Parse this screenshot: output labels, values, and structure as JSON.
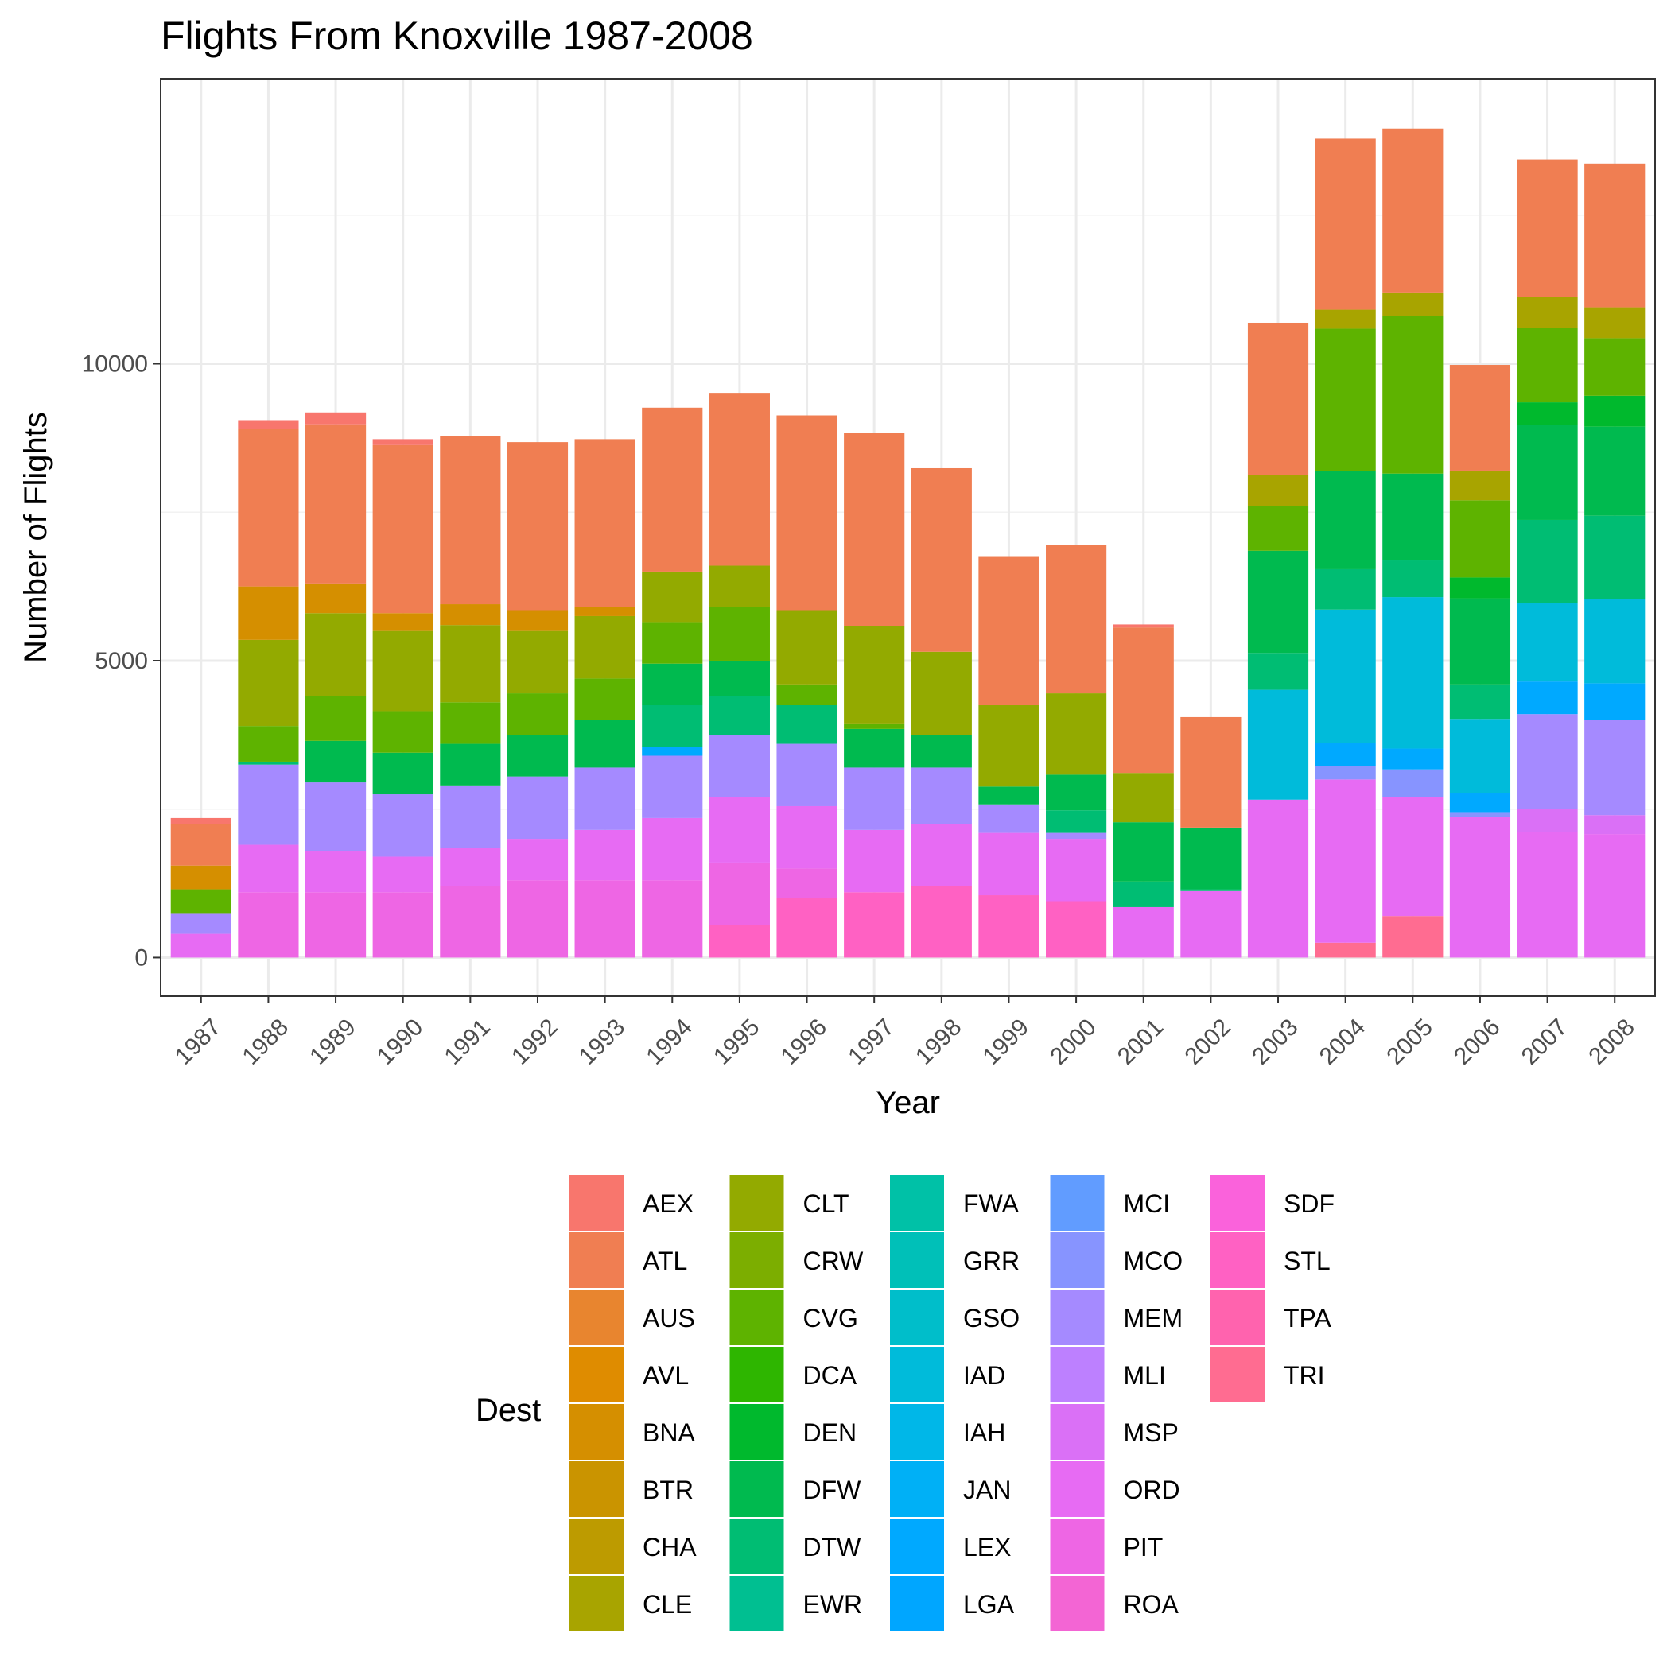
{
  "chart_data": {
    "type": "bar",
    "stacked": true,
    "title": "Flights From Knoxville 1987-2008",
    "xlabel": "Year",
    "ylabel": "Number of Flights",
    "ylim": [
      -650,
      14800
    ],
    "yticks": [
      0,
      5000,
      10000
    ],
    "ytick_labels": [
      "0",
      "5000",
      "10000"
    ],
    "grid": true,
    "legend_position": "bottom",
    "legend_title": "Dest",
    "categories": [
      "1987",
      "1988",
      "1989",
      "1990",
      "1991",
      "1992",
      "1993",
      "1994",
      "1995",
      "1996",
      "1997",
      "1998",
      "1999",
      "2000",
      "2001",
      "2002",
      "2003",
      "2004",
      "2005",
      "2006",
      "2007",
      "2008"
    ],
    "series": [
      {
        "name": "AEX",
        "color": "#F8766D",
        "values": [
          100,
          150,
          200,
          100,
          0,
          0,
          0,
          0,
          0,
          0,
          0,
          0,
          0,
          0,
          50,
          0,
          0,
          0,
          0,
          0,
          0,
          0
        ]
      },
      {
        "name": "ATL",
        "color": "#F07E52",
        "values": [
          700,
          2650,
          2680,
          2830,
          2830,
          2830,
          2830,
          2760,
          2910,
          3280,
          3260,
          3090,
          2510,
          2500,
          2450,
          1860,
          2560,
          2880,
          2760,
          1780,
          2320,
          2420
        ]
      },
      {
        "name": "AUS",
        "color": "#E8852F",
        "values": [
          0,
          0,
          0,
          0,
          0,
          0,
          0,
          0,
          0,
          0,
          0,
          0,
          0,
          0,
          0,
          0,
          0,
          0,
          0,
          0,
          0,
          0
        ]
      },
      {
        "name": "AVL",
        "color": "#DF8C00",
        "values": [
          0,
          0,
          0,
          0,
          0,
          0,
          0,
          0,
          0,
          0,
          0,
          0,
          0,
          0,
          0,
          0,
          0,
          0,
          0,
          0,
          0,
          0
        ]
      },
      {
        "name": "BNA",
        "color": "#D58F00",
        "values": [
          400,
          900,
          500,
          300,
          350,
          350,
          150,
          0,
          0,
          0,
          0,
          0,
          0,
          0,
          0,
          0,
          0,
          0,
          0,
          0,
          0,
          0
        ]
      },
      {
        "name": "BTR",
        "color": "#CA9400",
        "values": [
          0,
          0,
          0,
          0,
          0,
          0,
          0,
          0,
          0,
          0,
          0,
          0,
          0,
          0,
          0,
          0,
          0,
          0,
          0,
          0,
          0,
          0
        ]
      },
      {
        "name": "CHA",
        "color": "#BD9B00",
        "values": [
          0,
          0,
          0,
          0,
          0,
          0,
          0,
          0,
          0,
          0,
          0,
          0,
          0,
          0,
          0,
          0,
          0,
          0,
          0,
          0,
          0,
          0
        ]
      },
      {
        "name": "CLE",
        "color": "#A8A400",
        "values": [
          0,
          0,
          0,
          0,
          0,
          0,
          0,
          0,
          0,
          0,
          0,
          0,
          0,
          0,
          0,
          0,
          530,
          320,
          400,
          500,
          520,
          520
        ]
      },
      {
        "name": "CLT",
        "color": "#93AA00",
        "values": [
          0,
          1450,
          1400,
          1350,
          1300,
          1050,
          1050,
          850,
          700,
          1250,
          1650,
          1400,
          1370,
          1370,
          830,
          0,
          0,
          0,
          0,
          0,
          0,
          0
        ]
      },
      {
        "name": "CRW",
        "color": "#7CAE00",
        "values": [
          0,
          0,
          0,
          0,
          0,
          0,
          0,
          0,
          0,
          0,
          0,
          0,
          0,
          0,
          0,
          0,
          0,
          0,
          0,
          0,
          0,
          0
        ]
      },
      {
        "name": "CVG",
        "color": "#5EB300",
        "values": [
          400,
          600,
          750,
          700,
          700,
          700,
          700,
          700,
          900,
          350,
          80,
          0,
          0,
          0,
          0,
          0,
          750,
          2400,
          2650,
          1300,
          1250,
          970
        ]
      },
      {
        "name": "DCA",
        "color": "#2EB600",
        "values": [
          0,
          0,
          0,
          0,
          0,
          0,
          0,
          0,
          0,
          0,
          0,
          0,
          0,
          0,
          0,
          0,
          0,
          0,
          0,
          0,
          0,
          0
        ]
      },
      {
        "name": "DEN",
        "color": "#00B92D",
        "values": [
          0,
          0,
          0,
          0,
          0,
          0,
          0,
          0,
          0,
          0,
          0,
          0,
          0,
          0,
          0,
          0,
          0,
          0,
          0,
          350,
          380,
          520
        ]
      },
      {
        "name": "DFW",
        "color": "#00BA4F",
        "values": [
          0,
          0,
          700,
          700,
          700,
          700,
          800,
          700,
          600,
          0,
          650,
          550,
          300,
          600,
          1000,
          1040,
          1720,
          1650,
          1450,
          1450,
          1600,
          1500
        ]
      },
      {
        "name": "DTW",
        "color": "#00BD73",
        "values": [
          0,
          50,
          0,
          0,
          0,
          0,
          0,
          700,
          650,
          650,
          0,
          0,
          0,
          380,
          430,
          30,
          620,
          680,
          630,
          580,
          1400,
          1400
        ]
      },
      {
        "name": "EWR",
        "color": "#00BF91",
        "values": [
          0,
          0,
          0,
          0,
          0,
          0,
          0,
          0,
          0,
          0,
          0,
          0,
          0,
          0,
          0,
          0,
          0,
          0,
          0,
          0,
          0,
          0
        ]
      },
      {
        "name": "FWA",
        "color": "#00C1A7",
        "values": [
          0,
          0,
          0,
          0,
          0,
          0,
          0,
          0,
          0,
          0,
          0,
          0,
          0,
          0,
          0,
          0,
          0,
          0,
          0,
          0,
          0,
          0
        ]
      },
      {
        "name": "GRR",
        "color": "#00C0B8",
        "values": [
          0,
          0,
          0,
          0,
          0,
          0,
          0,
          0,
          0,
          0,
          0,
          0,
          0,
          0,
          0,
          0,
          0,
          0,
          0,
          0,
          0,
          0
        ]
      },
      {
        "name": "GSO",
        "color": "#00BECA",
        "values": [
          0,
          0,
          0,
          0,
          0,
          0,
          0,
          0,
          0,
          0,
          0,
          0,
          0,
          0,
          0,
          0,
          0,
          0,
          0,
          0,
          0,
          0
        ]
      },
      {
        "name": "IAD",
        "color": "#00BBDA",
        "values": [
          0,
          0,
          0,
          0,
          0,
          0,
          0,
          0,
          0,
          0,
          0,
          0,
          0,
          0,
          0,
          0,
          1850,
          2250,
          2550,
          1250,
          1320,
          1420
        ]
      },
      {
        "name": "IAH",
        "color": "#00B7E8",
        "values": [
          0,
          0,
          0,
          0,
          0,
          0,
          0,
          0,
          0,
          0,
          0,
          0,
          0,
          0,
          0,
          0,
          0,
          0,
          0,
          0,
          0,
          0
        ]
      },
      {
        "name": "JAN",
        "color": "#00B0F6",
        "values": [
          0,
          0,
          0,
          0,
          0,
          0,
          0,
          0,
          0,
          0,
          0,
          0,
          0,
          0,
          0,
          0,
          0,
          0,
          0,
          0,
          0,
          0
        ]
      },
      {
        "name": "LEX",
        "color": "#00A9FF",
        "values": [
          0,
          0,
          0,
          0,
          0,
          0,
          0,
          150,
          0,
          0,
          0,
          0,
          0,
          0,
          0,
          0,
          0,
          380,
          350,
          320,
          550,
          620
        ]
      },
      {
        "name": "LGA",
        "color": "#00A6FF",
        "values": [
          0,
          0,
          0,
          0,
          0,
          0,
          0,
          0,
          0,
          0,
          0,
          0,
          0,
          0,
          0,
          0,
          0,
          0,
          0,
          0,
          0,
          0
        ]
      },
      {
        "name": "MCI",
        "color": "#619CFF",
        "values": [
          0,
          0,
          0,
          0,
          0,
          0,
          0,
          0,
          0,
          0,
          0,
          0,
          0,
          0,
          0,
          0,
          0,
          0,
          0,
          0,
          0,
          0
        ]
      },
      {
        "name": "MCO",
        "color": "#8794FF",
        "values": [
          0,
          0,
          0,
          0,
          0,
          0,
          0,
          0,
          0,
          0,
          0,
          0,
          0,
          0,
          0,
          0,
          0,
          230,
          470,
          80,
          0,
          0
        ]
      },
      {
        "name": "MEM",
        "color": "#A58AFF",
        "values": [
          350,
          1350,
          1150,
          1050,
          1050,
          1050,
          1050,
          1050,
          1050,
          1050,
          1050,
          950,
          480,
          100,
          0,
          0,
          0,
          0,
          0,
          0,
          1600,
          1600
        ]
      },
      {
        "name": "MLI",
        "color": "#BD80FF",
        "values": [
          0,
          0,
          0,
          0,
          0,
          0,
          0,
          0,
          0,
          0,
          0,
          0,
          0,
          0,
          0,
          0,
          0,
          0,
          0,
          0,
          0,
          0
        ]
      },
      {
        "name": "MSP",
        "color": "#DA70F6",
        "values": [
          0,
          0,
          0,
          0,
          0,
          0,
          0,
          0,
          0,
          0,
          0,
          0,
          0,
          0,
          0,
          0,
          0,
          0,
          0,
          0,
          380,
          320
        ]
      },
      {
        "name": "ORD",
        "color": "#E76BF3",
        "values": [
          400,
          800,
          700,
          600,
          650,
          700,
          850,
          1050,
          1100,
          1050,
          1050,
          1050,
          1050,
          1050,
          850,
          1120,
          2660,
          2750,
          2000,
          2370,
          2120,
          2080
        ]
      },
      {
        "name": "PIT",
        "color": "#EE66E4",
        "values": [
          0,
          1100,
          1100,
          1100,
          1200,
          1300,
          1300,
          1300,
          1050,
          500,
          0,
          0,
          0,
          0,
          0,
          0,
          0,
          0,
          0,
          0,
          0,
          0
        ]
      },
      {
        "name": "ROA",
        "color": "#F365D4",
        "values": [
          0,
          0,
          0,
          0,
          0,
          0,
          0,
          0,
          0,
          0,
          0,
          0,
          0,
          0,
          0,
          0,
          0,
          0,
          0,
          0,
          0,
          0
        ]
      },
      {
        "name": "SDF",
        "color": "#FA62DB",
        "values": [
          0,
          0,
          0,
          0,
          0,
          0,
          0,
          0,
          0,
          0,
          0,
          0,
          0,
          0,
          0,
          0,
          0,
          0,
          0,
          0,
          0,
          0
        ]
      },
      {
        "name": "STL",
        "color": "#FF61C3",
        "values": [
          0,
          0,
          0,
          0,
          0,
          0,
          0,
          0,
          550,
          1000,
          1100,
          1200,
          1050,
          950,
          0,
          0,
          0,
          0,
          0,
          0,
          0,
          0
        ]
      },
      {
        "name": "TPA",
        "color": "#FF63AE",
        "values": [
          0,
          0,
          0,
          0,
          0,
          0,
          0,
          0,
          0,
          0,
          0,
          0,
          0,
          0,
          0,
          0,
          0,
          0,
          0,
          0,
          0,
          0
        ]
      },
      {
        "name": "TRI",
        "color": "#FF6C91",
        "values": [
          0,
          0,
          0,
          0,
          0,
          0,
          0,
          0,
          0,
          0,
          0,
          0,
          0,
          0,
          0,
          0,
          0,
          250,
          700,
          0,
          0,
          0
        ]
      }
    ]
  }
}
